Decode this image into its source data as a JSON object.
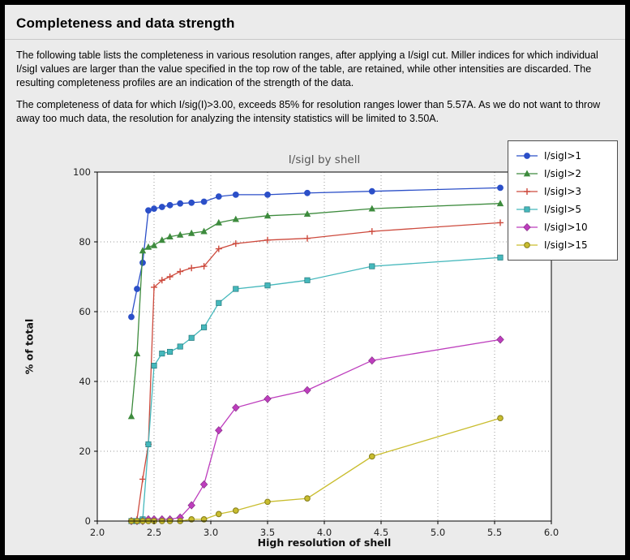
{
  "page": {
    "title": "Completeness and data strength",
    "paragraph1": "The following table lists the completeness in various resolution ranges, after applying a I/sigI cut. Miller indices for which individual I/sigI values are larger than the value specified in the top row of the table, are retained, while other intensities are discarded. The resulting completeness profiles are an indication of the strength of the data.",
    "paragraph2": "The completeness of data for which I/sig(I)>3.00, exceeds  85% for resolution ranges lower than 5.57A. As we do not want to throw away too much data, the resolution for analyzing the intensity statistics will be limited to 3.50A."
  },
  "chart_data": {
    "type": "line",
    "title": "I/sigI by shell",
    "xlabel": "High resolution of shell",
    "ylabel": "% of total",
    "xlim": [
      2.0,
      6.0
    ],
    "ylim": [
      0,
      100
    ],
    "xticks": [
      "2.0",
      "2.5",
      "3.0",
      "3.5",
      "4.0",
      "4.5",
      "5.0",
      "5.5",
      "6.0"
    ],
    "yticks": [
      "0",
      "20",
      "40",
      "60",
      "80",
      "100"
    ],
    "grid": true,
    "legend_position": "upper right",
    "x": [
      2.3,
      2.35,
      2.4,
      2.45,
      2.5,
      2.57,
      2.64,
      2.73,
      2.83,
      2.94,
      3.07,
      3.22,
      3.5,
      3.85,
      4.42,
      5.55
    ],
    "series": [
      {
        "name": "I/sigI>1",
        "color": "#2b4fc8",
        "marker": "circle",
        "values": [
          58.5,
          66.5,
          74.0,
          89.0,
          89.5,
          90.0,
          90.5,
          91.0,
          91.2,
          91.5,
          93.0,
          93.5,
          93.5,
          94.0,
          94.5,
          95.5
        ]
      },
      {
        "name": "I/sigI>2",
        "color": "#3d8b3d",
        "marker": "triangle",
        "values": [
          30.0,
          48.0,
          77.5,
          78.5,
          79.0,
          80.5,
          81.5,
          82.0,
          82.5,
          83.0,
          85.5,
          86.5,
          87.5,
          88.0,
          89.5,
          91.0
        ]
      },
      {
        "name": "I/sigI>3",
        "color": "#cd4a3d",
        "marker": "plus",
        "values": [
          0.0,
          0.5,
          12.0,
          22.0,
          67.0,
          69.0,
          70.0,
          71.5,
          72.5,
          73.0,
          78.0,
          79.5,
          80.5,
          81.0,
          83.0,
          85.5
        ]
      },
      {
        "name": "I/sigI>5",
        "color": "#45b8bc",
        "marker": "square",
        "values": [
          0.0,
          0.0,
          0.5,
          22.0,
          44.5,
          48.0,
          48.5,
          50.0,
          52.5,
          55.5,
          62.5,
          66.5,
          67.5,
          69.0,
          73.0,
          75.5
        ]
      },
      {
        "name": "I/sigI>10",
        "color": "#bd3dbd",
        "marker": "diamond",
        "values": [
          0.0,
          0.0,
          0.0,
          0.5,
          0.5,
          0.5,
          0.5,
          1.0,
          4.5,
          10.5,
          26.0,
          32.5,
          35.0,
          37.5,
          46.0,
          52.0
        ]
      },
      {
        "name": "I/sigI>15",
        "color": "#c9bd2e",
        "marker": "circle-open",
        "values": [
          0.0,
          0.0,
          0.0,
          0.0,
          0.0,
          0.0,
          0.0,
          0.0,
          0.5,
          0.5,
          2.0,
          3.0,
          5.5,
          6.5,
          18.5,
          29.5
        ]
      }
    ]
  }
}
